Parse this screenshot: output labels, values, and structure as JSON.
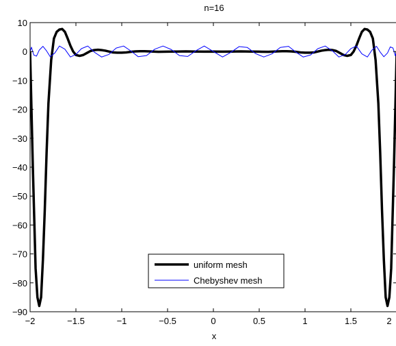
{
  "chart_data": {
    "type": "line",
    "title": "n=16",
    "xlabel": "x",
    "ylabel": "",
    "xlim": [
      -2,
      2
    ],
    "ylim": [
      -90,
      10
    ],
    "xticks": [
      -2,
      -1.5,
      -1,
      -0.5,
      0,
      0.5,
      1,
      1.5,
      2
    ],
    "xtick_labels": [
      "−2",
      "−1.5",
      "−1",
      "−0.5",
      "0",
      "0.5",
      "1",
      "1.5",
      "2"
    ],
    "yticks": [
      10,
      0,
      -10,
      -20,
      -30,
      -40,
      -50,
      -60,
      -70,
      -80,
      -90
    ],
    "ytick_labels": [
      "10",
      "0",
      "−10",
      "−20",
      "−30",
      "−40",
      "−50",
      "−60",
      "−70",
      "−80",
      "−90"
    ],
    "grid": false,
    "legend_position": "lower-center",
    "series": [
      {
        "name": "uniform mesh",
        "color": "#000000",
        "style": "thick solid",
        "x": [
          -2.0,
          -1.97,
          -1.94,
          -1.92,
          -1.9,
          -1.88,
          -1.86,
          -1.84,
          -1.82,
          -1.8,
          -1.77,
          -1.74,
          -1.71,
          -1.68,
          -1.65,
          -1.62,
          -1.59,
          -1.56,
          -1.53,
          -1.5,
          -1.46,
          -1.42,
          -1.38,
          -1.34,
          -1.3,
          -1.26,
          -1.22,
          -1.18,
          -1.14,
          -1.1,
          -1.05,
          -1.0,
          -0.95,
          -0.9,
          -0.85,
          -0.8,
          -0.75,
          -0.7,
          -0.6,
          -0.5,
          -0.4,
          -0.3,
          -0.2,
          -0.1,
          0.0,
          0.1,
          0.2,
          0.3,
          0.4,
          0.5,
          0.6,
          0.7,
          0.75,
          0.8,
          0.85,
          0.9,
          0.95,
          1.0,
          1.05,
          1.1,
          1.14,
          1.18,
          1.22,
          1.26,
          1.3,
          1.34,
          1.38,
          1.42,
          1.46,
          1.5,
          1.53,
          1.56,
          1.59,
          1.62,
          1.65,
          1.68,
          1.71,
          1.74,
          1.77,
          1.8,
          1.82,
          1.84,
          1.86,
          1.88,
          1.9,
          1.92,
          1.94,
          1.97,
          2.0
        ],
        "y": [
          0.0,
          -40.0,
          -75.0,
          -85.0,
          -88.0,
          -85.0,
          -72.0,
          -55.0,
          -35.0,
          -18.0,
          -3.0,
          4.5,
          6.8,
          7.6,
          7.8,
          6.8,
          4.5,
          2.0,
          0.0,
          -1.2,
          -1.5,
          -1.2,
          -0.5,
          0.2,
          0.5,
          0.6,
          0.5,
          0.3,
          0.0,
          -0.3,
          -0.4,
          -0.4,
          -0.3,
          -0.1,
          0.05,
          0.1,
          0.1,
          0.05,
          -0.1,
          -0.05,
          0.0,
          0.05,
          0.0,
          -0.05,
          0.0,
          -0.05,
          0.0,
          0.05,
          0.0,
          -0.05,
          -0.1,
          0.05,
          0.1,
          0.1,
          0.05,
          -0.1,
          -0.3,
          -0.4,
          -0.4,
          -0.3,
          0.0,
          0.3,
          0.5,
          0.6,
          0.5,
          0.2,
          -0.5,
          -1.2,
          -1.5,
          -1.2,
          0.0,
          2.0,
          4.5,
          6.8,
          7.8,
          7.6,
          6.8,
          4.5,
          -3.0,
          -18.0,
          -35.0,
          -55.0,
          -72.0,
          -85.0,
          -88.0,
          -85.0,
          -75.0,
          -40.0,
          0.0
        ]
      },
      {
        "name": "Chebyshev mesh",
        "color": "#0000ff",
        "style": "thin solid",
        "x": [
          -2.0,
          -1.985,
          -1.96,
          -1.93,
          -1.9,
          -1.86,
          -1.82,
          -1.78,
          -1.73,
          -1.68,
          -1.62,
          -1.56,
          -1.5,
          -1.44,
          -1.37,
          -1.3,
          -1.22,
          -1.14,
          -1.06,
          -0.98,
          -0.9,
          -0.82,
          -0.73,
          -0.64,
          -0.55,
          -0.46,
          -0.37,
          -0.28,
          -0.19,
          -0.1,
          0.0,
          0.1,
          0.19,
          0.28,
          0.37,
          0.46,
          0.55,
          0.64,
          0.73,
          0.82,
          0.9,
          0.98,
          1.06,
          1.14,
          1.22,
          1.3,
          1.37,
          1.44,
          1.5,
          1.56,
          1.62,
          1.68,
          1.73,
          1.78,
          1.82,
          1.86,
          1.9,
          1.93,
          1.96,
          1.985,
          2.0
        ],
        "y": [
          0.0,
          1.5,
          -1.2,
          -1.6,
          0.5,
          1.8,
          0.2,
          -1.8,
          -0.5,
          1.9,
          0.8,
          -1.9,
          -1.0,
          1.0,
          1.9,
          -0.2,
          -1.9,
          -1.0,
          1.2,
          1.9,
          0.2,
          -1.8,
          -1.4,
          0.8,
          1.9,
          0.7,
          -1.4,
          -1.7,
          0.3,
          1.9,
          0.0,
          -1.9,
          -0.3,
          1.7,
          1.4,
          -0.7,
          -1.9,
          -0.8,
          1.4,
          1.8,
          -0.2,
          -1.9,
          -1.2,
          1.0,
          1.9,
          0.2,
          -1.9,
          -1.0,
          1.0,
          1.9,
          -0.8,
          -1.9,
          0.5,
          1.8,
          -0.2,
          -1.8,
          -0.5,
          1.6,
          1.2,
          -1.5,
          0.0
        ]
      }
    ]
  }
}
